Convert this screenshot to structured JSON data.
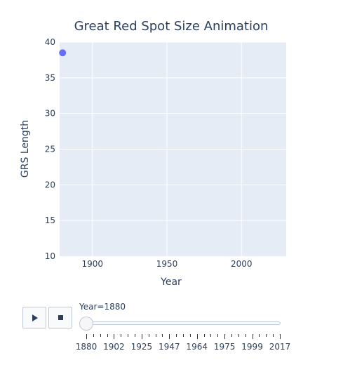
{
  "chart_data": {
    "type": "scatter",
    "title": "Great Red Spot Size Animation",
    "xlabel": "Year",
    "ylabel": "GRS Length",
    "xlim": [
      1878,
      2030
    ],
    "ylim": [
      10,
      40
    ],
    "xticks": [
      1900,
      1950,
      2000
    ],
    "yticks": [
      10,
      15,
      20,
      25,
      30,
      35,
      40
    ],
    "grid": true,
    "points": [
      {
        "x": 1880,
        "y": 38.5
      }
    ],
    "marker_color": "#636efa",
    "plot_bg": "#e5ecf6"
  },
  "slider": {
    "label": "Year=1880",
    "steps": [
      "1880",
      "1902",
      "1925",
      "1947",
      "1964",
      "1975",
      "1999",
      "2017"
    ]
  },
  "controls": {
    "play_icon": "play-icon",
    "stop_icon": "stop-icon"
  }
}
